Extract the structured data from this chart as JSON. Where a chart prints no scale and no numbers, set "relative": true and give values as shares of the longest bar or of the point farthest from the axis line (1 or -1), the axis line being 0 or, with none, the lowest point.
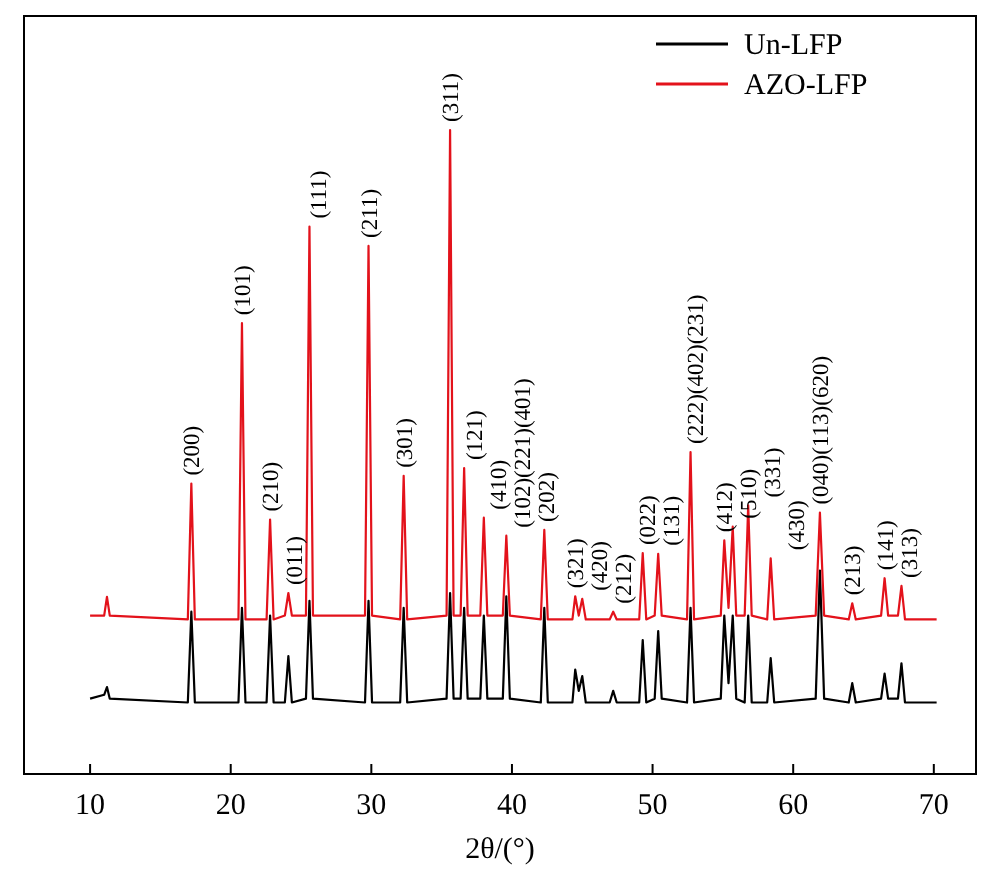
{
  "chart_data": {
    "type": "line",
    "relative": true,
    "xlabel": "2θ/(°)",
    "xlim": [
      5.3,
      73
    ],
    "xticks": [
      10,
      20,
      30,
      40,
      50,
      60,
      70
    ],
    "legend": "top right",
    "grid": false,
    "marker": "none",
    "line_style": "solid",
    "x": [
      10,
      11,
      11.2,
      11.4,
      16.95,
      17.2,
      17.45,
      20.55,
      20.8,
      21.05,
      22.55,
      22.8,
      23.05,
      23.85,
      24.1,
      24.35,
      25.35,
      25.6,
      25.85,
      29.55,
      29.8,
      30.05,
      32.05,
      32.3,
      32.55,
      35.35,
      35.6,
      35.85,
      36.35,
      36.6,
      36.85,
      37.75,
      38,
      38.25,
      39.35,
      39.6,
      39.85,
      42.05,
      42.3,
      42.55,
      44.3,
      44.5,
      44.75,
      45,
      45.25,
      46.95,
      47.2,
      47.45,
      49.05,
      49.3,
      49.55,
      50.15,
      50.4,
      50.65,
      52.45,
      52.7,
      52.95,
      54.85,
      55.1,
      55.4,
      55.7,
      55.95,
      56.55,
      56.8,
      57.05,
      58.15,
      58.4,
      58.65,
      61.6,
      61.9,
      62.2,
      63.95,
      64.2,
      64.45,
      66.25,
      66.5,
      66.75,
      67.45,
      67.7,
      67.95,
      70.2
    ],
    "series": [
      {
        "name": "Un-LFP",
        "color": "#000000",
        "values": [
          0.117,
          0.123,
          0.135,
          0.117,
          0.111,
          0.252,
          0.111,
          0.111,
          0.258,
          0.111,
          0.111,
          0.246,
          0.111,
          0.111,
          0.183,
          0.111,
          0.117,
          0.269,
          0.117,
          0.111,
          0.269,
          0.111,
          0.111,
          0.258,
          0.111,
          0.117,
          0.281,
          0.117,
          0.117,
          0.258,
          0.117,
          0.117,
          0.246,
          0.117,
          0.117,
          0.276,
          0.117,
          0.111,
          0.258,
          0.111,
          0.111,
          0.162,
          0.129,
          0.152,
          0.111,
          0.111,
          0.129,
          0.111,
          0.111,
          0.208,
          0.111,
          0.117,
          0.222,
          0.117,
          0.111,
          0.258,
          0.111,
          0.117,
          0.246,
          0.141,
          0.246,
          0.117,
          0.111,
          0.246,
          0.111,
          0.111,
          0.18,
          0.111,
          0.117,
          0.316,
          0.117,
          0.111,
          0.141,
          0.111,
          0.117,
          0.156,
          0.117,
          0.117,
          0.172,
          0.111,
          0.111
        ]
      },
      {
        "name": "AZO-LFP",
        "color": "#e3121b",
        "values": [
          0.246,
          0.246,
          0.275,
          0.246,
          0.24,
          0.451,
          0.24,
          0.24,
          0.7,
          0.24,
          0.24,
          0.395,
          0.24,
          0.246,
          0.281,
          0.246,
          0.246,
          0.85,
          0.246,
          0.246,
          0.82,
          0.246,
          0.24,
          0.463,
          0.24,
          0.246,
          1,
          0.246,
          0.246,
          0.475,
          0.246,
          0.246,
          0.398,
          0.246,
          0.246,
          0.37,
          0.246,
          0.24,
          0.379,
          0.24,
          0.24,
          0.276,
          0.246,
          0.272,
          0.24,
          0.24,
          0.252,
          0.24,
          0.24,
          0.343,
          0.24,
          0.246,
          0.342,
          0.246,
          0.24,
          0.5,
          0.24,
          0.246,
          0.363,
          0.258,
          0.384,
          0.246,
          0.246,
          0.417,
          0.246,
          0.24,
          0.335,
          0.24,
          0.246,
          0.406,
          0.246,
          0.24,
          0.265,
          0.24,
          0.246,
          0.304,
          0.246,
          0.246,
          0.292,
          0.24,
          0.24
        ]
      }
    ],
    "annotations": [
      {
        "text": "(200)",
        "x": 17.2,
        "y": 0.451
      },
      {
        "text": "(101)",
        "x": 20.8,
        "y": 0.7
      },
      {
        "text": "(210)",
        "x": 22.8,
        "y": 0.395
      },
      {
        "text": "(011)",
        "x": 24.1,
        "y": 0.281
      },
      {
        "text": "(111)",
        "x": 25.6,
        "y": 0.85
      },
      {
        "text": "(211)",
        "x": 29.8,
        "y": 0.82
      },
      {
        "text": "(301)",
        "x": 32.3,
        "y": 0.463
      },
      {
        "text": "(311)",
        "x": 35.6,
        "y": 1
      },
      {
        "text": "(121)",
        "x": 36.6,
        "y": 0.475
      },
      {
        "text": "(410)",
        "x": 38,
        "y": 0.398
      },
      {
        "text": "(102)(221)(401)",
        "x": 39.6,
        "y": 0.37
      },
      {
        "text": "(202)",
        "x": 42.3,
        "y": 0.379
      },
      {
        "text": "(321)",
        "x": 44.5,
        "y": 0.276
      },
      {
        "text": "(420)",
        "x": 45,
        "y": 0.272
      },
      {
        "text": "(212)",
        "x": 47.2,
        "y": 0.252
      },
      {
        "text": "(022)",
        "x": 49.3,
        "y": 0.343
      },
      {
        "text": "(131)",
        "x": 50.4,
        "y": 0.342
      },
      {
        "text": "(222)(402)(231)",
        "x": 52.7,
        "y": 0.5
      },
      {
        "text": "(412)",
        "x": 55.1,
        "y": 0.363
      },
      {
        "text": "(510)",
        "x": 55.7,
        "y": 0.384
      },
      {
        "text": "(331)",
        "x": 56.8,
        "y": 0.417
      },
      {
        "text": "(430)",
        "x": 58.4,
        "y": 0.335
      },
      {
        "text": "(040)(113)(620)",
        "x": 61.9,
        "y": 0.406
      },
      {
        "text": "(213)",
        "x": 64.2,
        "y": 0.265
      },
      {
        "text": "(141)",
        "x": 66.5,
        "y": 0.304
      },
      {
        "text": "(313)",
        "x": 67.7,
        "y": 0.292
      }
    ]
  }
}
